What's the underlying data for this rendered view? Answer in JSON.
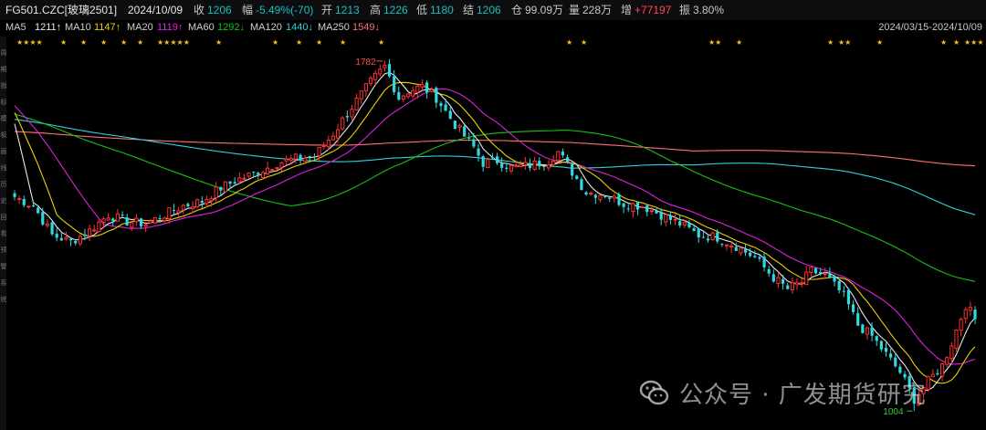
{
  "header": {
    "symbol": "FG501.CZC[玻璃2501]",
    "date": "2024/10/09",
    "fields": [
      {
        "label": "收",
        "value": "1206",
        "color": "#18c0c0"
      },
      {
        "label": "幅",
        "value": "-5.49%(-70)",
        "color": "#18c0c0"
      },
      {
        "label": "开",
        "value": "1213",
        "color": "#18c0c0"
      },
      {
        "label": "高",
        "value": "1226",
        "color": "#18c0c0"
      },
      {
        "label": "低",
        "value": "1180",
        "color": "#18c0c0"
      },
      {
        "label": "结",
        "value": "1206",
        "color": "#18c0c0"
      },
      {
        "label": "仓",
        "value": "99.09万",
        "color": "#c8c8c8"
      },
      {
        "label": "量",
        "value": "228万",
        "color": "#c8c8c8"
      },
      {
        "label": "增",
        "value": "+77197",
        "color": "#ff4a4a"
      },
      {
        "label": "振",
        "value": "3.80%",
        "color": "#c8c8c8"
      }
    ]
  },
  "ma_legend": [
    {
      "label": "MA5",
      "value": "1211↑",
      "color": "#e8e8e8"
    },
    {
      "label": "MA10",
      "value": "1147↑",
      "color": "#f0d000"
    },
    {
      "label": "MA20",
      "value": "1119↑",
      "color": "#e020e0"
    },
    {
      "label": "MA60",
      "value": "1292↓",
      "color": "#18c018"
    },
    {
      "label": "MA120",
      "value": "1440↓",
      "color": "#30d0e0"
    },
    {
      "label": "MA250",
      "value": "1549↓",
      "color": "#ff7070"
    }
  ],
  "range_label": "2024/03/15-2024/10/09",
  "left_axis_glyphs": [
    "周",
    "期",
    "指",
    "标",
    "模",
    "板",
    "画",
    "线",
    "历",
    "史",
    "回",
    "看",
    "预",
    "警",
    "系",
    "统"
  ],
  "chart_data": {
    "type": "candlestick",
    "x_range": [
      "2024/03/15",
      "2024/10/09"
    ],
    "ylim": [
      980,
      1800
    ],
    "up_color": "#ff3030",
    "down_color": "#30d8e0",
    "high_label": "1782",
    "low_label": "1004",
    "high_value": 1782,
    "low_value": 1004,
    "ma_series": [
      {
        "name": "MA5",
        "color": "#e8e8e8",
        "last": 1211
      },
      {
        "name": "MA10",
        "color": "#f0d000",
        "last": 1147
      },
      {
        "name": "MA20",
        "color": "#e020e0",
        "last": 1119
      },
      {
        "name": "MA60",
        "color": "#18c018",
        "last": 1292
      },
      {
        "name": "MA120",
        "color": "#30d0e0",
        "last": 1440
      },
      {
        "name": "MA250",
        "color": "#ff7070",
        "last": 1549
      }
    ],
    "close_anchors": [
      [
        0,
        1480
      ],
      [
        4,
        1460
      ],
      [
        8,
        1395
      ],
      [
        12,
        1380
      ],
      [
        16,
        1405
      ],
      [
        20,
        1440
      ],
      [
        24,
        1425
      ],
      [
        28,
        1420
      ],
      [
        32,
        1440
      ],
      [
        36,
        1460
      ],
      [
        40,
        1470
      ],
      [
        44,
        1500
      ],
      [
        48,
        1520
      ],
      [
        52,
        1535
      ],
      [
        56,
        1555
      ],
      [
        60,
        1565
      ],
      [
        64,
        1570
      ],
      [
        68,
        1620
      ],
      [
        72,
        1680
      ],
      [
        76,
        1735
      ],
      [
        79,
        1770
      ],
      [
        82,
        1700
      ],
      [
        84,
        1715
      ],
      [
        87,
        1725
      ],
      [
        90,
        1700
      ],
      [
        94,
        1640
      ],
      [
        98,
        1590
      ],
      [
        100,
        1555
      ],
      [
        103,
        1560
      ],
      [
        106,
        1545
      ],
      [
        110,
        1550
      ],
      [
        114,
        1560
      ],
      [
        116,
        1580
      ],
      [
        119,
        1535
      ],
      [
        122,
        1490
      ],
      [
        126,
        1485
      ],
      [
        130,
        1465
      ],
      [
        134,
        1460
      ],
      [
        138,
        1440
      ],
      [
        142,
        1420
      ],
      [
        146,
        1395
      ],
      [
        150,
        1390
      ],
      [
        154,
        1370
      ],
      [
        158,
        1345
      ],
      [
        162,
        1300
      ],
      [
        165,
        1275
      ],
      [
        168,
        1290
      ],
      [
        170,
        1315
      ],
      [
        173,
        1305
      ],
      [
        177,
        1260
      ],
      [
        180,
        1195
      ],
      [
        183,
        1170
      ],
      [
        186,
        1130
      ],
      [
        189,
        1090
      ],
      [
        192,
        1030
      ],
      [
        195,
        1070
      ],
      [
        198,
        1105
      ],
      [
        200,
        1155
      ],
      [
        203,
        1240
      ],
      [
        205,
        1208
      ]
    ],
    "stars": [
      "★★★★",
      "★",
      "★",
      "★",
      "★",
      "★",
      "★★★★★",
      "★",
      "★",
      "★",
      "★",
      "★",
      "★",
      "★",
      "★",
      "★★",
      "★",
      "★",
      "★★",
      "★",
      "★",
      "★",
      "★★★"
    ]
  },
  "watermark": {
    "text": "公众号 · 广发期货研究",
    "icon": "wechat-icon"
  }
}
